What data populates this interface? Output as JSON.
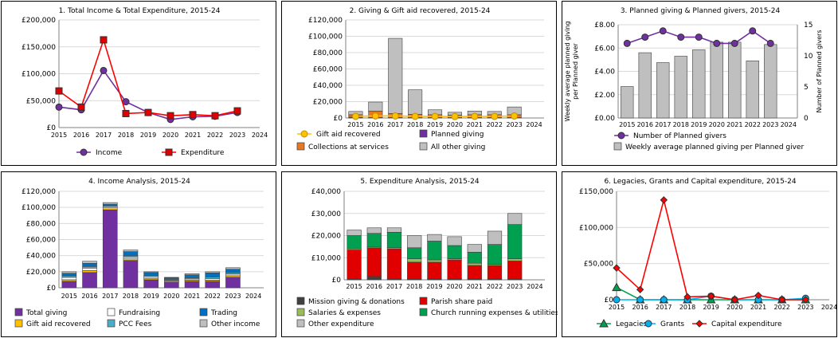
{
  "charts": [
    {
      "type": "line",
      "title": "1. Total Income & Total Expenditure, 2015-24",
      "categories": [
        "2015",
        "2016",
        "2017",
        "2018",
        "2019",
        "2020",
        "2021",
        "2022",
        "2023",
        "2024"
      ],
      "ylim": [
        0,
        200000
      ],
      "yticks": [
        0,
        50000,
        100000,
        150000,
        200000
      ],
      "ytick_labels": [
        "£0",
        "£50,000",
        "£100,000",
        "£150,000",
        "£200,000"
      ],
      "grid": true,
      "legend_position": "bottom",
      "series": [
        {
          "name": "Income",
          "color": "#7030a0",
          "marker": "circle",
          "marker_fill": "#7030a0",
          "values": [
            38000,
            33000,
            106000,
            48000,
            28000,
            15000,
            20000,
            21000,
            28000,
            null
          ]
        },
        {
          "name": "Expenditure",
          "color": "#ff0000",
          "line_color": "#ff0000",
          "marker": "square",
          "marker_fill": "#e00000",
          "values": [
            68000,
            38000,
            163000,
            26000,
            28000,
            22000,
            24000,
            22000,
            31000,
            null
          ]
        }
      ]
    },
    {
      "type": "bar",
      "stacked": true,
      "title": "2. Giving & Gift aid recovered, 2015-24",
      "categories": [
        "2015",
        "2016",
        "2017",
        "2018",
        "2019",
        "2020",
        "2021",
        "2022",
        "2023",
        "2024"
      ],
      "ylim": [
        0,
        120000
      ],
      "yticks": [
        0,
        20000,
        40000,
        60000,
        80000,
        100000,
        120000
      ],
      "ytick_labels": [
        "£0",
        "£20,000",
        "£40,000",
        "£60,000",
        "£80,000",
        "£100,000",
        "£120,000"
      ],
      "grid": true,
      "legend_position": "bottom",
      "series": [
        {
          "name": "Planned giving",
          "color": "#7030a0",
          "values": [
            1000,
            500,
            500,
            500,
            500,
            500,
            500,
            500,
            500,
            0
          ]
        },
        {
          "name": "Collections at services",
          "color": "#e87722",
          "values": [
            3000,
            8000,
            5000,
            4000,
            3500,
            3000,
            3500,
            3500,
            3500,
            0
          ]
        },
        {
          "name": "All other giving",
          "color": "#bfbfbf",
          "values": [
            4000,
            11000,
            92000,
            30000,
            6000,
            3500,
            4500,
            4000,
            9500,
            0
          ]
        }
      ],
      "line_series": [
        {
          "name": "Gift aid recovered",
          "color": "#ffc000",
          "line_color": "#ffc000",
          "marker": "circle",
          "marker_fill": "#ffc000",
          "marker_stroke": "#bf9000",
          "values": [
            2000,
            2500,
            2500,
            2000,
            2000,
            1800,
            2000,
            2000,
            2500,
            null
          ]
        }
      ],
      "legend_order": [
        "Gift aid recovered",
        "Planned giving",
        "Collections at services",
        "All other giving"
      ]
    },
    {
      "type": "bar",
      "title": "3. Planned giving & Planned givers, 2015-24",
      "categories": [
        "2015",
        "2016",
        "2017",
        "2018",
        "2019",
        "2020",
        "2021",
        "2022",
        "2023",
        "2024"
      ],
      "ylim": [
        0,
        8
      ],
      "yticks": [
        0,
        2,
        4,
        6,
        8
      ],
      "ytick_labels": [
        "£0.00",
        "£2.00",
        "£4.00",
        "£6.00",
        "£8.00"
      ],
      "ylabel": "Weekly average planned giving per Planned giver",
      "y2lim": [
        0,
        15
      ],
      "y2ticks": [
        0,
        5,
        10,
        15
      ],
      "y2tick_labels": [
        "0",
        "5",
        "10",
        "15"
      ],
      "y2label": "Number of Planned givers",
      "grid": true,
      "legend_position": "bottom",
      "series": [
        {
          "name": "Weekly average planned giving per Planned giver",
          "color": "#bfbfbf",
          "values": [
            2.7,
            5.6,
            4.75,
            5.3,
            5.85,
            6.5,
            6.5,
            4.9,
            6.3,
            null
          ]
        }
      ],
      "line_series": [
        {
          "name": "Number of Planned givers",
          "axis": "right",
          "color": "#7030a0",
          "line_color": "#7030a0",
          "marker": "circle",
          "marker_fill": "#7030a0",
          "values": [
            12,
            13,
            14,
            13,
            13,
            12,
            12,
            14,
            12,
            null
          ]
        }
      ],
      "legend_order": [
        "Number of Planned givers",
        "Weekly average planned giving per Planned giver"
      ]
    },
    {
      "type": "bar",
      "stacked": true,
      "title": "4. Income Analysis, 2015-24",
      "categories": [
        "2015",
        "2016",
        "2017",
        "2018",
        "2019",
        "2020",
        "2021",
        "2022",
        "2023",
        "2024"
      ],
      "ylim": [
        0,
        120000
      ],
      "yticks": [
        0,
        20000,
        40000,
        60000,
        80000,
        100000,
        120000
      ],
      "ytick_labels": [
        "£0",
        "£20,000",
        "£40,000",
        "£60,000",
        "£80,000",
        "£100,000",
        "£120,000"
      ],
      "grid": true,
      "legend_position": "bottom",
      "series": [
        {
          "name": "Total giving",
          "color": "#7030a0",
          "values": [
            8000,
            19000,
            97000,
            34000,
            10000,
            7000,
            8000,
            8000,
            13000,
            0
          ]
        },
        {
          "name": "Gift aid recovered",
          "color": "#ffc000",
          "values": [
            2000,
            2500,
            2500,
            2000,
            2000,
            1500,
            1500,
            1500,
            2000,
            0
          ]
        },
        {
          "name": "Fundraising",
          "color": "#ffffff",
          "values": [
            3000,
            3000,
            1500,
            2000,
            2000,
            1000,
            1500,
            2000,
            2000,
            0
          ]
        },
        {
          "name": "PCC Fees",
          "color": "#4bacc6",
          "values": [
            2000,
            2000,
            1000,
            2000,
            1500,
            1000,
            1500,
            2000,
            2000,
            0
          ]
        },
        {
          "name": "Trading",
          "color": "#0070c0",
          "values": [
            3000,
            4000,
            2000,
            5000,
            3500,
            2000,
            3500,
            5000,
            4000,
            0
          ]
        },
        {
          "name": "Other income",
          "color": "#bfbfbf",
          "values": [
            2000,
            2500,
            2000,
            2000,
            1000,
            500,
            1500,
            1500,
            2000,
            0
          ]
        }
      ],
      "legend_order": [
        "Total giving",
        "Fundraising",
        "Trading",
        "Gift aid recovered",
        "PCC Fees",
        "Other income"
      ]
    },
    {
      "type": "bar",
      "stacked": true,
      "title": "5. Expenditure Analysis, 2015-24",
      "categories": [
        "2015",
        "2016",
        "2017",
        "2018",
        "2019",
        "2020",
        "2021",
        "2022",
        "2023",
        "2024"
      ],
      "ylim": [
        0,
        40000
      ],
      "yticks": [
        0,
        10000,
        20000,
        30000,
        40000
      ],
      "ytick_labels": [
        "£0",
        "£10,000",
        "£20,000",
        "£30,000",
        "£40,000"
      ],
      "grid": true,
      "legend_position": "bottom",
      "series": [
        {
          "name": "Mission giving & donations",
          "color": "#404040",
          "values": [
            500,
            1500,
            500,
            500,
            500,
            500,
            500,
            500,
            500,
            0
          ]
        },
        {
          "name": "Parish share paid",
          "color": "#e00000",
          "values": [
            13000,
            13000,
            13500,
            7500,
            7500,
            8500,
            6000,
            6000,
            8000,
            0
          ]
        },
        {
          "name": "Salaries & expenses",
          "color": "#9bbb59",
          "values": [
            500,
            500,
            500,
            1500,
            1000,
            500,
            1000,
            500,
            1000,
            0
          ]
        },
        {
          "name": "Church running expenses & utilities",
          "color": "#00a050",
          "values": [
            6000,
            6000,
            7000,
            5000,
            8500,
            6000,
            5000,
            9000,
            15500,
            0
          ]
        },
        {
          "name": "Other expenditure",
          "color": "#bfbfbf",
          "values": [
            2500,
            2500,
            2000,
            5500,
            3000,
            4000,
            3500,
            6000,
            5000,
            0
          ]
        }
      ],
      "legend_order": [
        "Mission giving & donations",
        "Parish share paid",
        "Salaries & expenses",
        "Church running expenses & utilities",
        "Other expenditure"
      ]
    },
    {
      "type": "line",
      "title": "6. Legacies, Grants and Capital expenditure, 2015-24",
      "categories": [
        "2015",
        "2016",
        "2017",
        "2018",
        "2019",
        "2020",
        "2021",
        "2022",
        "2023",
        "2024"
      ],
      "ylim": [
        0,
        150000
      ],
      "yticks": [
        0,
        50000,
        100000,
        150000
      ],
      "ytick_labels": [
        "£0",
        "£50,000",
        "£100,000",
        "£150,000"
      ],
      "grid": true,
      "legend_position": "bottom",
      "series": [
        {
          "name": "Legacies",
          "color": "#00a050",
          "line_color": "#00a050",
          "marker": "triangle",
          "marker_fill": "#00a050",
          "values": [
            17000,
            0,
            0,
            0,
            0,
            0,
            0,
            0,
            0,
            null
          ]
        },
        {
          "name": "Grants",
          "color": "#00b0f0",
          "line_color": "#00b0f0",
          "marker": "circle",
          "marker_fill": "#00b0f0",
          "values": [
            0,
            0,
            0,
            0,
            5000,
            0,
            0,
            0,
            2000,
            null
          ]
        },
        {
          "name": "Capital expenditure",
          "color": "#ff0000",
          "line_color": "#ff0000",
          "marker": "diamond",
          "marker_fill": "#ff0000",
          "values": [
            44000,
            14000,
            138000,
            4000,
            5000,
            0,
            6000,
            0,
            0,
            null
          ]
        }
      ]
    }
  ]
}
